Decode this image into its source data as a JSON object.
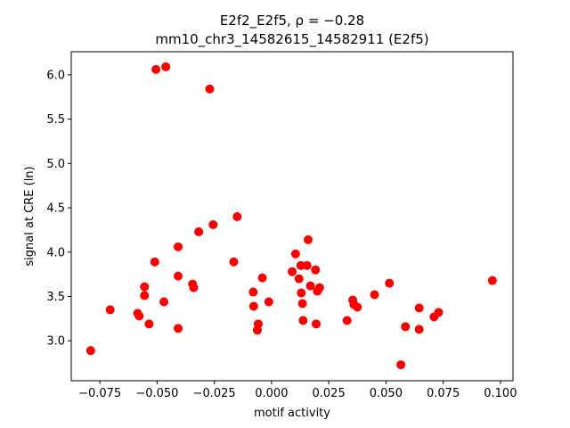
{
  "chart_data": {
    "type": "scatter",
    "title": "E2f2_E2f5, ρ = −0.28",
    "subtitle": "mm10_chr3_14582615_14582911 (E2f5)",
    "xlabel": "motif activity",
    "ylabel": "signal at CRE (ln)",
    "xlim": [
      -0.0875,
      0.1055
    ],
    "ylim": [
      2.55,
      6.26
    ],
    "xticks": [
      -0.075,
      -0.05,
      -0.025,
      0.0,
      0.025,
      0.05,
      0.075,
      0.1
    ],
    "xtick_labels": [
      "−0.075",
      "−0.050",
      "−0.025",
      "0.000",
      "0.025",
      "0.050",
      "0.075",
      "0.100"
    ],
    "yticks": [
      3.0,
      3.5,
      4.0,
      4.5,
      5.0,
      5.5,
      6.0
    ],
    "ytick_labels": [
      "3.0",
      "3.5",
      "4.0",
      "4.5",
      "5.0",
      "5.5",
      "6.0"
    ],
    "grid": false,
    "marker_color": "#ff0000",
    "series": [
      {
        "points": [
          [
            -0.079,
            2.89
          ],
          [
            -0.0705,
            3.35
          ],
          [
            -0.0585,
            3.31
          ],
          [
            -0.0578,
            3.28
          ],
          [
            -0.0555,
            3.61
          ],
          [
            -0.0555,
            3.51
          ],
          [
            -0.0535,
            3.19
          ],
          [
            -0.051,
            3.89
          ],
          [
            -0.0505,
            6.06
          ],
          [
            -0.047,
            3.44
          ],
          [
            -0.0462,
            6.09
          ],
          [
            -0.0408,
            4.06
          ],
          [
            -0.0408,
            3.73
          ],
          [
            -0.0408,
            3.14
          ],
          [
            -0.0345,
            3.64
          ],
          [
            -0.034,
            3.6
          ],
          [
            -0.0318,
            4.23
          ],
          [
            -0.027,
            5.84
          ],
          [
            -0.0255,
            4.31
          ],
          [
            -0.0165,
            3.89
          ],
          [
            -0.015,
            4.4
          ],
          [
            -0.008,
            3.55
          ],
          [
            -0.0078,
            3.39
          ],
          [
            -0.0062,
            3.12
          ],
          [
            -0.0058,
            3.19
          ],
          [
            -0.004,
            3.71
          ],
          [
            -0.0012,
            3.44
          ],
          [
            0.009,
            3.78
          ],
          [
            0.0105,
            3.98
          ],
          [
            0.012,
            3.7
          ],
          [
            0.0128,
            3.85
          ],
          [
            0.013,
            3.54
          ],
          [
            0.0135,
            3.42
          ],
          [
            0.0138,
            3.23
          ],
          [
            0.0155,
            3.85
          ],
          [
            0.016,
            4.14
          ],
          [
            0.017,
            3.62
          ],
          [
            0.0192,
            3.8
          ],
          [
            0.0195,
            3.19
          ],
          [
            0.02,
            3.56
          ],
          [
            0.021,
            3.6
          ],
          [
            0.033,
            3.23
          ],
          [
            0.0355,
            3.46
          ],
          [
            0.036,
            3.41
          ],
          [
            0.0375,
            3.38
          ],
          [
            0.045,
            3.52
          ],
          [
            0.0515,
            3.65
          ],
          [
            0.0565,
            2.73
          ],
          [
            0.0585,
            3.16
          ],
          [
            0.0645,
            3.37
          ],
          [
            0.0645,
            3.13
          ],
          [
            0.071,
            3.27
          ],
          [
            0.073,
            3.32
          ],
          [
            0.0965,
            3.68
          ]
        ]
      }
    ]
  }
}
